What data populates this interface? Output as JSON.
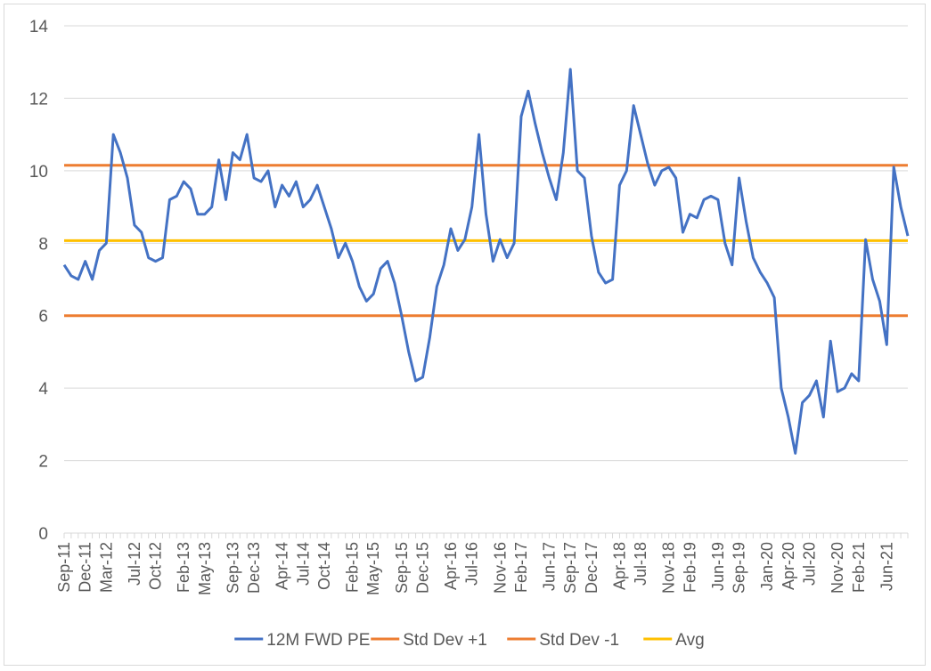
{
  "chart_data": {
    "type": "line",
    "title": "",
    "xlabel": "",
    "ylabel": "",
    "ylim": [
      0,
      14
    ],
    "yticks": [
      0,
      2,
      4,
      6,
      8,
      10,
      12,
      14
    ],
    "xlim": [
      "2011-09",
      "2021-09"
    ],
    "xticks": [
      "Sep-11",
      "Dec-11",
      "Mar-12",
      "Jul-12",
      "Oct-12",
      "Feb-13",
      "May-13",
      "Sep-13",
      "Dec-13",
      "Apr-14",
      "Jul-14",
      "Oct-14",
      "Feb-15",
      "May-15",
      "Sep-15",
      "Dec-15",
      "Apr-16",
      "Jul-16",
      "Nov-16",
      "Feb-17",
      "Jun-17",
      "Sep-17",
      "Dec-17",
      "Apr-18",
      "Jul-18",
      "Nov-18",
      "Feb-19",
      "Jun-19",
      "Sep-19",
      "Jan-20",
      "Apr-20",
      "Jul-20",
      "Nov-20",
      "Feb-21",
      "Jun-21"
    ],
    "grid": "horizontal",
    "legend_position": "bottom",
    "series": [
      {
        "name": "12M FWD PE",
        "color": "#4472c4",
        "points": [
          [
            "2011-09",
            7.4
          ],
          [
            "2011-10",
            7.1
          ],
          [
            "2011-11",
            7.0
          ],
          [
            "2011-12",
            7.5
          ],
          [
            "2012-01",
            7.0
          ],
          [
            "2012-02",
            7.8
          ],
          [
            "2012-03",
            8.0
          ],
          [
            "2012-04",
            11.0
          ],
          [
            "2012-05",
            10.5
          ],
          [
            "2012-06",
            9.8
          ],
          [
            "2012-07",
            8.5
          ],
          [
            "2012-08",
            8.3
          ],
          [
            "2012-09",
            7.6
          ],
          [
            "2012-10",
            7.5
          ],
          [
            "2012-11",
            7.6
          ],
          [
            "2012-12",
            9.2
          ],
          [
            "2013-01",
            9.3
          ],
          [
            "2013-02",
            9.7
          ],
          [
            "2013-03",
            9.5
          ],
          [
            "2013-04",
            8.8
          ],
          [
            "2013-05",
            8.8
          ],
          [
            "2013-06",
            9.0
          ],
          [
            "2013-07",
            10.3
          ],
          [
            "2013-08",
            9.2
          ],
          [
            "2013-09",
            10.5
          ],
          [
            "2013-10",
            10.3
          ],
          [
            "2013-11",
            11.0
          ],
          [
            "2013-12",
            9.8
          ],
          [
            "2014-01",
            9.7
          ],
          [
            "2014-02",
            10.0
          ],
          [
            "2014-03",
            9.0
          ],
          [
            "2014-04",
            9.6
          ],
          [
            "2014-05",
            9.3
          ],
          [
            "2014-06",
            9.7
          ],
          [
            "2014-07",
            9.0
          ],
          [
            "2014-08",
            9.2
          ],
          [
            "2014-09",
            9.6
          ],
          [
            "2014-10",
            9.0
          ],
          [
            "2014-11",
            8.4
          ],
          [
            "2014-12",
            7.6
          ],
          [
            "2015-01",
            8.0
          ],
          [
            "2015-02",
            7.5
          ],
          [
            "2015-03",
            6.8
          ],
          [
            "2015-04",
            6.4
          ],
          [
            "2015-05",
            6.6
          ],
          [
            "2015-06",
            7.3
          ],
          [
            "2015-07",
            7.5
          ],
          [
            "2015-08",
            6.9
          ],
          [
            "2015-09",
            6.0
          ],
          [
            "2015-10",
            5.0
          ],
          [
            "2015-11",
            4.2
          ],
          [
            "2015-12",
            4.3
          ],
          [
            "2016-01",
            5.4
          ],
          [
            "2016-02",
            6.8
          ],
          [
            "2016-03",
            7.4
          ],
          [
            "2016-04",
            8.4
          ],
          [
            "2016-05",
            7.8
          ],
          [
            "2016-06",
            8.1
          ],
          [
            "2016-07",
            9.0
          ],
          [
            "2016-08",
            11.0
          ],
          [
            "2016-09",
            8.8
          ],
          [
            "2016-10",
            7.5
          ],
          [
            "2016-11",
            8.1
          ],
          [
            "2016-12",
            7.6
          ],
          [
            "2017-01",
            8.0
          ],
          [
            "2017-02",
            11.5
          ],
          [
            "2017-03",
            12.2
          ],
          [
            "2017-04",
            11.3
          ],
          [
            "2017-05",
            10.5
          ],
          [
            "2017-06",
            9.8
          ],
          [
            "2017-07",
            9.2
          ],
          [
            "2017-08",
            10.5
          ],
          [
            "2017-09",
            12.8
          ],
          [
            "2017-10",
            10.0
          ],
          [
            "2017-11",
            9.8
          ],
          [
            "2017-12",
            8.2
          ],
          [
            "2018-01",
            7.2
          ],
          [
            "2018-02",
            6.9
          ],
          [
            "2018-03",
            7.0
          ],
          [
            "2018-04",
            9.6
          ],
          [
            "2018-05",
            10.0
          ],
          [
            "2018-06",
            11.8
          ],
          [
            "2018-07",
            11.0
          ],
          [
            "2018-08",
            10.2
          ],
          [
            "2018-09",
            9.6
          ],
          [
            "2018-10",
            10.0
          ],
          [
            "2018-11",
            10.1
          ],
          [
            "2018-12",
            9.8
          ],
          [
            "2019-01",
            8.3
          ],
          [
            "2019-02",
            8.8
          ],
          [
            "2019-03",
            8.7
          ],
          [
            "2019-04",
            9.2
          ],
          [
            "2019-05",
            9.3
          ],
          [
            "2019-06",
            9.2
          ],
          [
            "2019-07",
            8.0
          ],
          [
            "2019-08",
            7.4
          ],
          [
            "2019-09",
            9.8
          ],
          [
            "2019-10",
            8.6
          ],
          [
            "2019-11",
            7.6
          ],
          [
            "2019-12",
            7.2
          ],
          [
            "2020-01",
            6.9
          ],
          [
            "2020-02",
            6.5
          ],
          [
            "2020-03",
            4.0
          ],
          [
            "2020-04",
            3.2
          ],
          [
            "2020-05",
            2.2
          ],
          [
            "2020-06",
            3.6
          ],
          [
            "2020-07",
            3.8
          ],
          [
            "2020-08",
            4.2
          ],
          [
            "2020-09",
            3.2
          ],
          [
            "2020-10",
            5.3
          ],
          [
            "2020-11",
            3.9
          ],
          [
            "2020-12",
            4.0
          ],
          [
            "2021-01",
            4.4
          ],
          [
            "2021-02",
            4.2
          ],
          [
            "2021-03",
            8.1
          ],
          [
            "2021-04",
            7.0
          ],
          [
            "2021-05",
            6.4
          ],
          [
            "2021-06",
            5.2
          ],
          [
            "2021-07",
            10.1
          ],
          [
            "2021-08",
            9.0
          ],
          [
            "2021-09",
            8.2
          ]
        ]
      },
      {
        "name": "Std Dev +1",
        "color": "#ed7d31",
        "constant": 10.15
      },
      {
        "name": "Std Dev -1",
        "color": "#ed7d31",
        "constant": 6.0
      },
      {
        "name": "Avg",
        "color": "#ffc000",
        "constant": 8.07
      }
    ]
  }
}
